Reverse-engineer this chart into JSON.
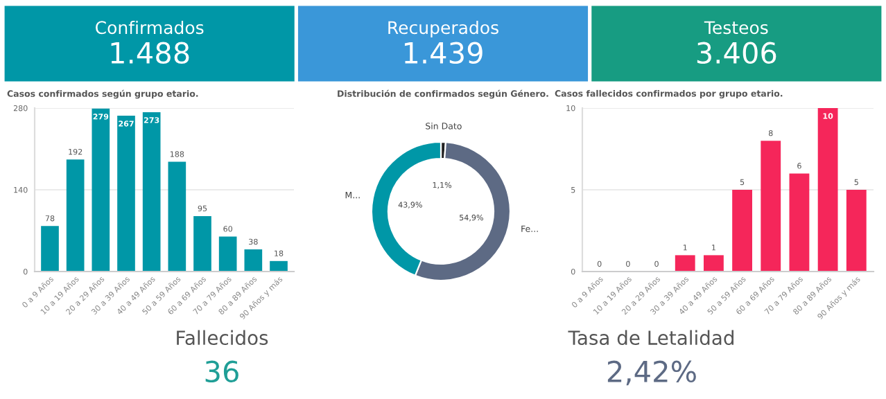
{
  "chart_data": [
    {
      "type": "other",
      "categories": [
        "Confirmados",
        "Recuperados",
        "Testeos"
      ],
      "value_labels": [
        "1.488",
        "1.439",
        "3.406"
      ],
      "colors": [
        "#0097a7",
        "#3a97d9",
        "#179c82"
      ]
    },
    {
      "type": "bar",
      "title": "Casos confirmados según grupo etario.",
      "categories": [
        "0 a 9 Años",
        "10 a 19 Años",
        "20 a 29 Años",
        "30 a 39 Años",
        "40 a 49 Años",
        "50 a 59 Años",
        "60 a 69 Años",
        "70 a 79 Años",
        "80 a 89 Años",
        "90 Años y más"
      ],
      "values": [
        78,
        192,
        279,
        267,
        273,
        188,
        95,
        60,
        38,
        18
      ],
      "color": "#0097a7",
      "ylim": [
        0,
        280
      ],
      "yticks": [
        0,
        140,
        280
      ],
      "grid": "y",
      "data_labels": true
    },
    {
      "type": "donut",
      "title": "Distribución de confirmados según Género.",
      "categories": [
        "Sin Dato",
        "Fe...",
        "M..."
      ],
      "values": [
        1.1,
        54.9,
        43.9
      ],
      "value_labels": [
        "1,1%",
        "54,9%",
        "43,9%"
      ],
      "colors": [
        "#222222",
        "#5d6a84",
        "#0097a7"
      ]
    },
    {
      "type": "bar",
      "title": "Casos fallecidos confirmados por grupo etario.",
      "categories": [
        "0 a 9 Años",
        "10 a 19 Años",
        "20 a 29 Años",
        "30 a 39 Años",
        "40 a 49 Años",
        "50 a 59 Años",
        "60 a 69 Años",
        "70 a 79 Años",
        "80 a 89 Años",
        "90 Años y más"
      ],
      "values": [
        0,
        0,
        0,
        1,
        1,
        5,
        8,
        6,
        10,
        5
      ],
      "color": "#f5265a",
      "ylim": [
        0,
        10
      ],
      "yticks": [
        0,
        5,
        10
      ],
      "grid": "y",
      "data_labels": true
    },
    {
      "type": "other",
      "categories": [
        "Fallecidos",
        "Tasa de Letalidad"
      ],
      "value_labels": [
        "36",
        "2,42%"
      ],
      "colors": [
        "#1f9e96",
        "#5d6a84"
      ]
    }
  ]
}
